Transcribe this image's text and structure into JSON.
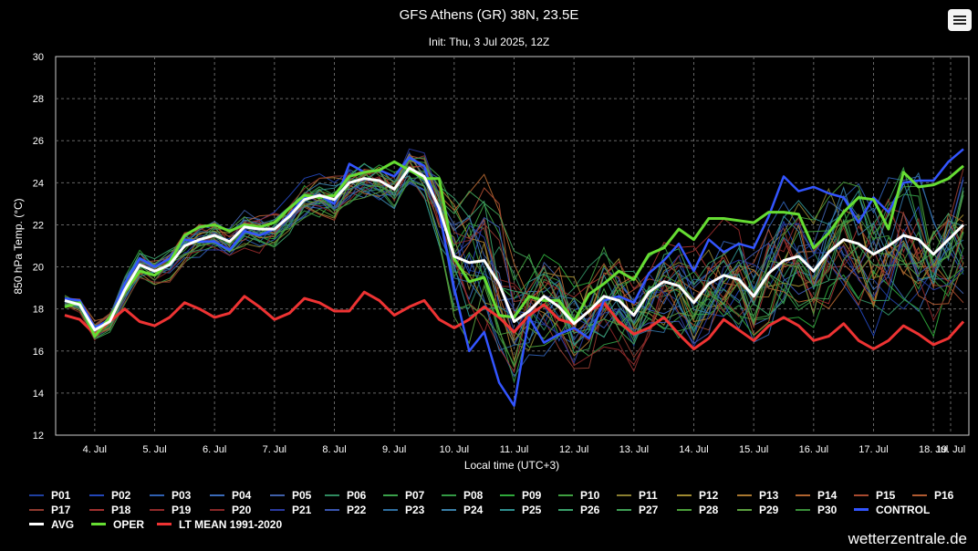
{
  "brand": "wetterzentrale.de",
  "menu_icon": "hamburger-menu-icon",
  "chart_data": {
    "type": "line",
    "title": "GFS Athens (GR) 38N, 23.5E",
    "subtitle": "Init: Thu, 3 Jul 2025, 12Z",
    "xlabel": "Local time (UTC+3)",
    "ylabel": "850 hPa Temp. (°C)",
    "ylim": [
      12,
      30
    ],
    "yticks": [
      "12",
      "14",
      "16",
      "18",
      "20",
      "22",
      "24",
      "26",
      "28",
      "30"
    ],
    "xtick_labels": [
      "4. Jul",
      "5. Jul",
      "6. Jul",
      "7. Jul",
      "8. Jul",
      "9. Jul",
      "10. Jul",
      "11. Jul",
      "12. Jul",
      "13. Jul",
      "14. Jul",
      "15. Jul",
      "16. Jul",
      "17. Jul",
      "18. Jul",
      "19. Jul"
    ],
    "x_start": "3 Jul 2025 21:00",
    "step_hours": 6,
    "grid": true,
    "legend_position": "bottom",
    "series": [
      {
        "name": "AVG",
        "color": "#ffffff",
        "width": 3,
        "values": [
          18.4,
          18.2,
          17.0,
          17.4,
          18.9,
          20.1,
          19.8,
          20.1,
          21.0,
          21.3,
          21.5,
          21.2,
          21.9,
          21.8,
          21.8,
          22.4,
          23.2,
          23.4,
          23.2,
          24.0,
          24.2,
          24.1,
          23.7,
          24.7,
          24.3,
          22.8,
          20.5,
          20.2,
          20.3,
          19.2,
          17.4,
          17.9,
          18.6,
          18.1,
          17.3,
          17.9,
          18.6,
          18.4,
          17.7,
          18.8,
          19.3,
          19.1,
          18.3,
          19.2,
          19.6,
          19.4,
          18.6,
          19.7,
          20.3,
          20.5,
          19.8,
          20.7,
          21.3,
          21.1,
          20.6,
          21.0,
          21.5,
          21.3,
          20.6,
          21.3,
          22.0
        ]
      },
      {
        "name": "OPER",
        "color": "#66dd33",
        "width": 3,
        "values": [
          18.1,
          18.3,
          16.7,
          17.6,
          18.8,
          19.8,
          19.6,
          20.2,
          21.5,
          21.9,
          22.0,
          21.7,
          22.0,
          21.9,
          22.1,
          22.8,
          23.4,
          23.3,
          23.4,
          24.3,
          24.5,
          24.6,
          25.0,
          24.6,
          24.2,
          24.2,
          20.4,
          19.3,
          19.5,
          17.7,
          17.6,
          18.6,
          18.4,
          18.4,
          17.4,
          18.7,
          19.2,
          19.8,
          19.4,
          20.6,
          20.9,
          21.8,
          21.3,
          22.3,
          22.3,
          22.2,
          22.1,
          22.6,
          22.6,
          22.5,
          20.9,
          21.6,
          22.6,
          23.3,
          23.2,
          21.8,
          24.5,
          23.8,
          23.9,
          24.2,
          24.8
        ]
      },
      {
        "name": "CONTROL",
        "color": "#3355ff",
        "width": 2.5,
        "values": [
          18.5,
          18.4,
          17.1,
          17.5,
          19.2,
          20.4,
          20.0,
          20.4,
          21.3,
          21.2,
          21.2,
          20.8,
          21.7,
          21.5,
          21.8,
          22.5,
          23.3,
          23.4,
          23.0,
          24.9,
          24.5,
          24.6,
          24.3,
          25.2,
          24.8,
          22.6,
          19.0,
          16.0,
          16.9,
          14.5,
          13.4,
          17.6,
          16.4,
          16.8,
          17.1,
          16.6,
          18.4,
          18.6,
          18.3,
          19.7,
          20.3,
          21.1,
          19.8,
          21.3,
          20.7,
          21.1,
          20.9,
          22.4,
          24.3,
          23.6,
          23.8,
          23.5,
          23.3,
          22.1,
          23.3,
          22.6,
          24.0,
          24.1,
          24.1,
          25.0,
          25.6
        ]
      },
      {
        "name": "LT MEAN 1991-2020",
        "color": "#ee3333",
        "width": 3,
        "values": [
          17.7,
          17.5,
          16.8,
          17.4,
          18.0,
          17.4,
          17.2,
          17.6,
          18.3,
          18.0,
          17.6,
          17.8,
          18.6,
          18.1,
          17.5,
          17.8,
          18.5,
          18.3,
          17.9,
          17.9,
          18.8,
          18.4,
          17.7,
          18.1,
          18.4,
          17.5,
          17.1,
          17.5,
          18.1,
          17.6,
          16.9,
          17.7,
          18.2,
          17.5,
          17.3,
          17.9,
          18.3,
          17.4,
          16.8,
          17.1,
          17.6,
          16.8,
          16.1,
          16.6,
          17.5,
          17.0,
          16.5,
          17.2,
          17.6,
          17.2,
          16.5,
          16.7,
          17.3,
          16.5,
          16.1,
          16.5,
          17.2,
          16.8,
          16.3,
          16.6,
          17.4
        ]
      }
    ],
    "members": [
      "P01",
      "P02",
      "P03",
      "P04",
      "P05",
      "P06",
      "P07",
      "P08",
      "P09",
      "P10",
      "P11",
      "P12",
      "P13",
      "P14",
      "P15",
      "P16",
      "P17",
      "P18",
      "P19",
      "P20",
      "P21",
      "P22",
      "P23",
      "P24",
      "P25",
      "P26",
      "P27",
      "P28",
      "P29",
      "P30"
    ],
    "member_colors": [
      "#1f3f9f",
      "#2346b8",
      "#2f5fb0",
      "#3a6ab8",
      "#3f5fa8",
      "#2f8a5f",
      "#3aa04a",
      "#339944",
      "#2ea83a",
      "#3f9f40",
      "#8a7f30",
      "#9f8a30",
      "#a8772f",
      "#b0642f",
      "#a84a2f",
      "#b05a30",
      "#8f3a2f",
      "#a0302f",
      "#902a2a",
      "#882828",
      "#2a3a9f",
      "#3a55b0",
      "#2f6fa0",
      "#3a7fa8",
      "#2f8f8f",
      "#3aa06a",
      "#3f9f55",
      "#4a9f3a",
      "#5a9f3f",
      "#3a8f3a"
    ],
    "member_spread": [
      0.3,
      0.3,
      0.4,
      0.4,
      0.5,
      0.5,
      0.5,
      0.6,
      0.6,
      0.6,
      0.6,
      0.6,
      0.7,
      0.7,
      0.7,
      0.7,
      0.7,
      0.8,
      0.8,
      0.8,
      0.8,
      0.8,
      0.8,
      0.9,
      1.0,
      1.4,
      2.2,
      2.8,
      3.0,
      2.6,
      2.2,
      2.0,
      2.0,
      2.0,
      1.9,
      1.9,
      1.9,
      1.8,
      1.8,
      1.8,
      1.8,
      1.8,
      1.9,
      1.9,
      1.9,
      2.0,
      2.0,
      2.1,
      2.2,
      2.2,
      2.3,
      2.3,
      2.4,
      2.4,
      2.5,
      2.5,
      2.6,
      2.6,
      2.7,
      2.7,
      2.8
    ],
    "legend_rows": [
      [
        "P01",
        "P02",
        "P03",
        "P04",
        "P05",
        "P06",
        "P07",
        "P08",
        "P09",
        "P10",
        "P11",
        "P12",
        "P13",
        "P14",
        "P15",
        "P16"
      ],
      [
        "P17",
        "P18",
        "P19",
        "P20",
        "P21",
        "P22",
        "P23",
        "P24",
        "P25",
        "P26",
        "P27",
        "P28",
        "P29",
        "P30",
        "CONTROL"
      ],
      [
        "AVG",
        "OPER",
        "LT MEAN 1991-2020"
      ]
    ]
  }
}
